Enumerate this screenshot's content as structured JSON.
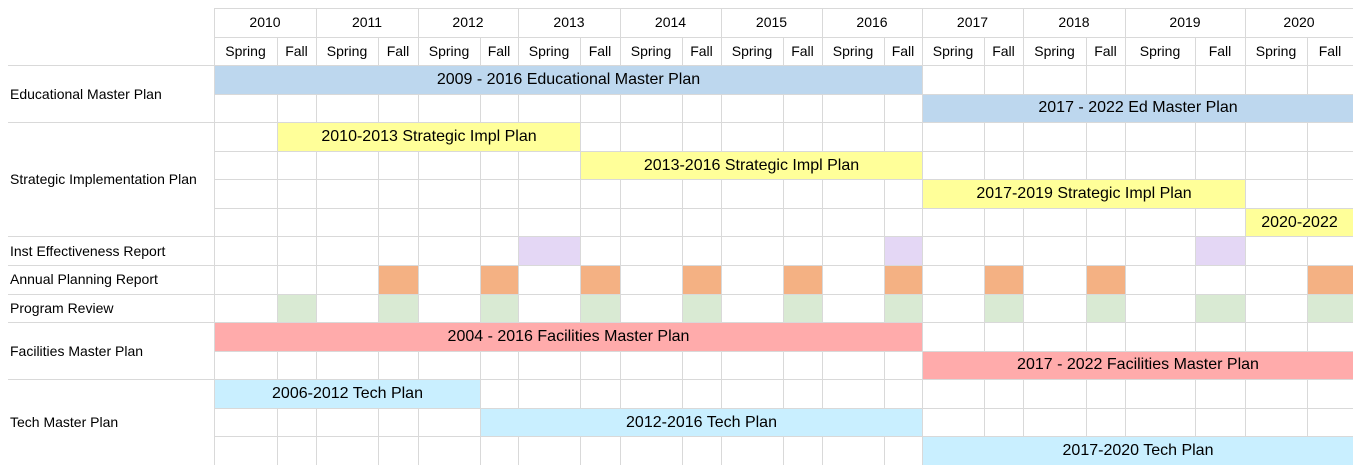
{
  "header": {
    "years": [
      "2010",
      "2011",
      "2012",
      "2013",
      "2014",
      "2015",
      "2016",
      "2017",
      "2018",
      "2019",
      "2020"
    ],
    "seasons": [
      "Spring",
      "Fall",
      "Spring",
      "Fall",
      "Spring",
      "Fall",
      "Spring",
      "Fall",
      "Spring",
      "Fall",
      "Spring",
      "Fall",
      "Spring",
      "Fall",
      "Spring",
      "Fall",
      "Spring",
      "Fall",
      "Spring",
      "Fall",
      "Spring",
      "Fall"
    ]
  },
  "groups": [
    {
      "label": "Educational Master Plan",
      "bars": [
        "2009 - 2016 Educational Master Plan",
        "2017 - 2022 Ed Master Plan"
      ]
    },
    {
      "label": "Strategic Implementation Plan",
      "bars": [
        "2010-2013 Strategic Impl Plan",
        "2013-2016 Strategic Impl Plan",
        "2017-2019 Strategic Impl Plan",
        "2020-2022"
      ]
    },
    {
      "label": "Inst Effectiveness Report",
      "bars": []
    },
    {
      "label": "Annual Planning Report",
      "bars": []
    },
    {
      "label": "Program Review",
      "bars": []
    },
    {
      "label": "Facilities Master Plan",
      "bars": [
        "2004 - 2016 Facilities Master Plan",
        "2017 - 2022 Facilities Master Plan"
      ]
    },
    {
      "label": "Tech Master Plan",
      "bars": [
        "2006-2012 Tech Plan",
        "2012-2016 Tech Plan",
        "2017-2020 Tech Plan"
      ]
    }
  ]
}
